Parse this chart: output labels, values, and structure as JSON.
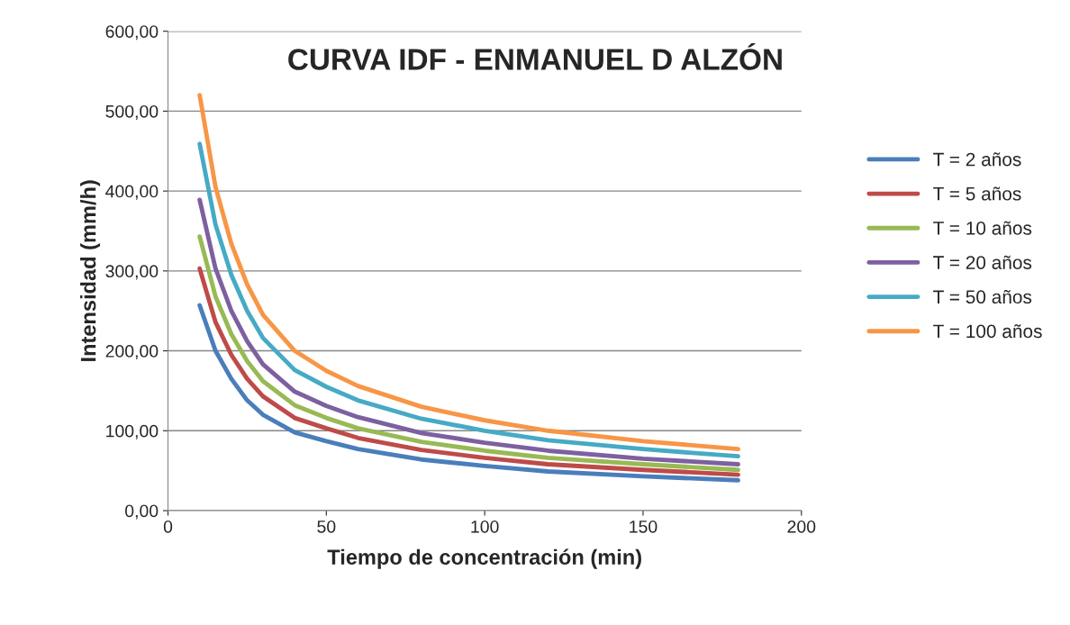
{
  "chart_data": {
    "type": "line",
    "title": "CURVA IDF - ENMANUEL D ALZÓN",
    "xlabel": "Tiempo de concentración (min)",
    "ylabel": "Intensidad (mm/h)",
    "x": [
      10,
      15,
      20,
      25,
      30,
      40,
      50,
      60,
      80,
      100,
      120,
      150,
      180
    ],
    "series": [
      {
        "name": "T = 2 años",
        "color": "#4a7ebb",
        "values": [
          257,
          200,
          165,
          138,
          120,
          98,
          87,
          77,
          64,
          56,
          49,
          43,
          38
        ]
      },
      {
        "name": "T = 5 años",
        "color": "#be4b48",
        "values": [
          303,
          236,
          195,
          165,
          143,
          116,
          103,
          91,
          76,
          66,
          58,
          51,
          45
        ]
      },
      {
        "name": "T = 10 años",
        "color": "#98b954",
        "values": [
          343,
          268,
          221,
          187,
          162,
          132,
          116,
          103,
          86,
          75,
          66,
          58,
          51
        ]
      },
      {
        "name": "T = 20 años",
        "color": "#7d60a0",
        "values": [
          389,
          303,
          250,
          212,
          183,
          149,
          131,
          117,
          97,
          85,
          75,
          65,
          58
        ]
      },
      {
        "name": "T = 50 años",
        "color": "#46aac5",
        "values": [
          459,
          358,
          295,
          250,
          216,
          176,
          155,
          138,
          115,
          100,
          88,
          77,
          68
        ]
      },
      {
        "name": "T = 100 años",
        "color": "#f79646",
        "values": [
          520,
          405,
          334,
          283,
          245,
          200,
          175,
          156,
          130,
          113,
          100,
          87,
          77
        ]
      }
    ],
    "xlim": [
      0,
      200
    ],
    "xticks": [
      0,
      50,
      100,
      150,
      200
    ],
    "ylim": [
      0,
      600
    ],
    "yticks": [
      {
        "value": 0,
        "label": "0,00"
      },
      {
        "value": 100,
        "label": "100,00"
      },
      {
        "value": 200,
        "label": "200,00"
      },
      {
        "value": 300,
        "label": "300,00"
      },
      {
        "value": 400,
        "label": "400,00"
      },
      {
        "value": 500,
        "label": "500,00"
      },
      {
        "value": 600,
        "label": "600,00"
      }
    ],
    "grid": "y",
    "legend": "right",
    "marker": "none",
    "line_style": "solid"
  }
}
